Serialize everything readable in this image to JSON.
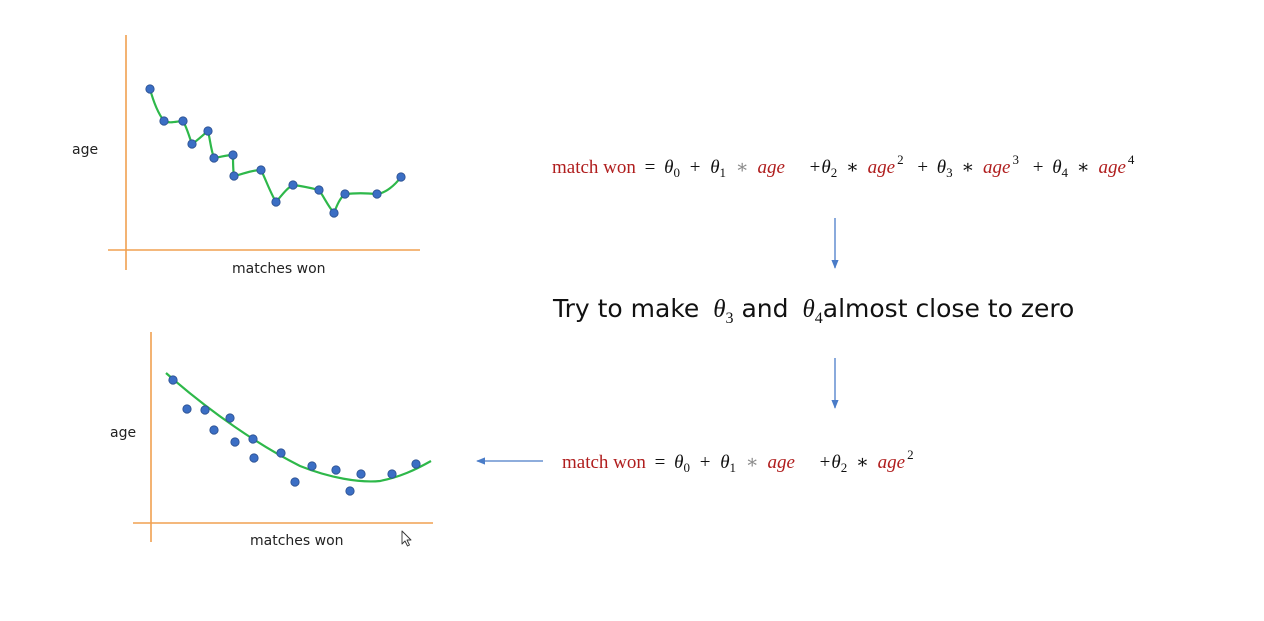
{
  "colors": {
    "axis": "#f0a050",
    "curve": "#2eb84a",
    "point": "#3b6ec4",
    "point_stroke": "#2a4f8f",
    "arrow": "#4a7cc8",
    "equation_red": "#b01e1e"
  },
  "top_plot": {
    "ylabel": "age",
    "xlabel": "matches won"
  },
  "bottom_plot": {
    "ylabel": "age",
    "xlabel": "matches won"
  },
  "equation_top": {
    "lhs": "match won",
    "eq": "=",
    "theta": "θ",
    "sub0": "0",
    "sub1": "1",
    "sub2": "2",
    "sub3": "3",
    "sub4": "4",
    "plus": "+",
    "times": "∗",
    "var": "age",
    "pow2": "2",
    "pow3": "3",
    "pow4": "4"
  },
  "headline": {
    "part1": "Try to make ",
    "theta": "θ",
    "sub3": "3",
    "and": " and ",
    "sub4": "4",
    "part2": "almost close to zero"
  },
  "equation_bottom": {
    "lhs": "match won",
    "eq": "=",
    "theta": "θ",
    "sub0": "0",
    "sub1": "1",
    "sub2": "2",
    "plus": "+",
    "times": "∗",
    "var": "age",
    "pow2": "2"
  }
}
